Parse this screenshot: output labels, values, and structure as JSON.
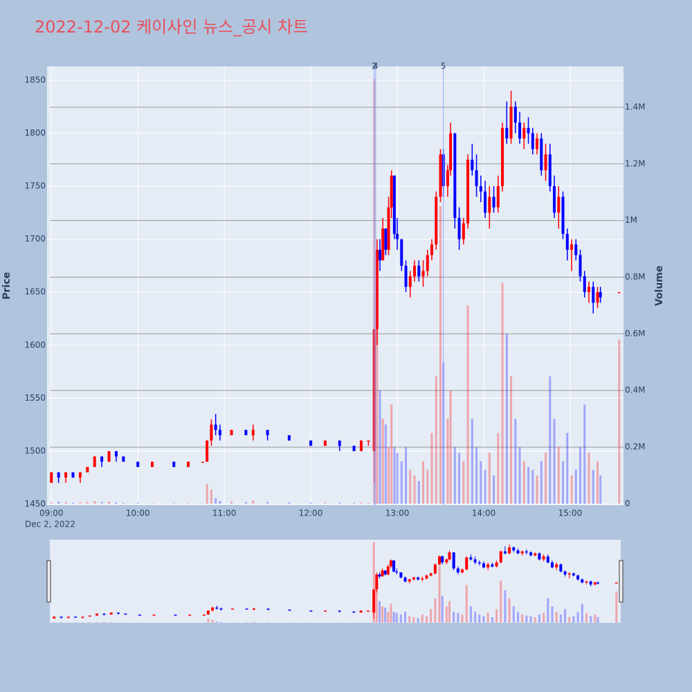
{
  "chart_data": {
    "type": "candlestick",
    "title": "2022-12-02 케이사인 뉴스_공시 차트",
    "y_label": "Price",
    "y2_label": "Volume",
    "x_date_label": "Dec 2, 2022",
    "up_color": "#ff0000",
    "down_color": "#0000ff",
    "grid": true,
    "xlim": [
      "08:57",
      "15:37"
    ],
    "xticks": [
      "09:00",
      "10:00",
      "11:00",
      "12:00",
      "13:00",
      "14:00",
      "15:00"
    ],
    "ylim": [
      1449,
      1863
    ],
    "yticks": [
      1450,
      1500,
      1550,
      1600,
      1650,
      1700,
      1750,
      1800,
      1850
    ],
    "y2lim": [
      -5000,
      1544000
    ],
    "y2ticks": [
      0,
      {
        "value": 200000,
        "label": "0.2M"
      },
      {
        "value": 400000,
        "label": "0.4M"
      },
      {
        "value": 600000,
        "label": "0.6M"
      },
      {
        "value": 800000,
        "label": "0.8M"
      },
      {
        "value": 1000000,
        "label": "1M"
      },
      {
        "value": 1200000,
        "label": "1.2M"
      },
      {
        "value": 1400000,
        "label": "1.4M"
      }
    ],
    "annotations": [
      {
        "x": "12:44",
        "text": "2"
      },
      {
        "x": "12:45",
        "text": "4"
      },
      {
        "x": "13:32",
        "text": "5"
      }
    ],
    "x": [
      "09:00",
      "09:05",
      "09:10",
      "09:15",
      "09:20",
      "09:25",
      "09:30",
      "09:35",
      "09:40",
      "09:45",
      "09:50",
      "10:00",
      "10:10",
      "10:25",
      "10:35",
      "10:45",
      "10:48",
      "10:51",
      "10:54",
      "10:57",
      "11:05",
      "11:15",
      "11:20",
      "11:30",
      "11:45",
      "12:00",
      "12:10",
      "12:20",
      "12:30",
      "12:35",
      "12:40",
      "12:44",
      "12:46",
      "12:48",
      "12:50",
      "12:52",
      "12:54",
      "12:56",
      "12:58",
      "13:00",
      "13:03",
      "13:06",
      "13:09",
      "13:12",
      "13:15",
      "13:18",
      "13:21",
      "13:24",
      "13:27",
      "13:30",
      "13:32",
      "13:35",
      "13:37",
      "13:40",
      "13:43",
      "13:46",
      "13:49",
      "13:52",
      "13:55",
      "13:58",
      "14:01",
      "14:04",
      "14:07",
      "14:10",
      "14:13",
      "14:16",
      "14:19",
      "14:22",
      "14:25",
      "14:28",
      "14:31",
      "14:34",
      "14:37",
      "14:40",
      "14:43",
      "14:46",
      "14:49",
      "14:52",
      "14:55",
      "14:58",
      "15:01",
      "15:04",
      "15:07",
      "15:10",
      "15:13",
      "15:16",
      "15:19",
      "15:21",
      "15:34"
    ],
    "open": [
      1470,
      1480,
      1475,
      1480,
      1475,
      1480,
      1485,
      1495,
      1490,
      1500,
      1495,
      1490,
      1485,
      1490,
      1485,
      1490,
      1490,
      1510,
      1525,
      1520,
      1515,
      1520,
      1515,
      1520,
      1515,
      1510,
      1505,
      1510,
      1505,
      1500,
      1510,
      1500,
      1615,
      1690,
      1680,
      1710,
      1690,
      1730,
      1760,
      1705,
      1700,
      1675,
      1655,
      1665,
      1675,
      1665,
      1670,
      1685,
      1695,
      1740,
      1780,
      1750,
      1765,
      1800,
      1720,
      1700,
      1715,
      1775,
      1765,
      1750,
      1745,
      1725,
      1740,
      1730,
      1750,
      1805,
      1795,
      1825,
      1810,
      1795,
      1805,
      1800,
      1785,
      1795,
      1765,
      1780,
      1750,
      1725,
      1740,
      1705,
      1690,
      1695,
      1685,
      1665,
      1650,
      1655,
      1640,
      1650,
      1650
    ],
    "high": [
      1480,
      1480,
      1480,
      1480,
      1480,
      1485,
      1495,
      1495,
      1500,
      1500,
      1495,
      1490,
      1490,
      1490,
      1490,
      1490,
      1510,
      1530,
      1535,
      1525,
      1520,
      1520,
      1525,
      1520,
      1515,
      1510,
      1510,
      1510,
      1505,
      1510,
      1510,
      1615,
      1700,
      1700,
      1720,
      1710,
      1740,
      1765,
      1760,
      1720,
      1700,
      1680,
      1670,
      1680,
      1680,
      1680,
      1690,
      1700,
      1745,
      1785,
      1785,
      1770,
      1810,
      1800,
      1730,
      1720,
      1780,
      1790,
      1780,
      1760,
      1755,
      1750,
      1750,
      1760,
      1810,
      1830,
      1840,
      1830,
      1820,
      1810,
      1815,
      1805,
      1800,
      1800,
      1790,
      1790,
      1760,
      1750,
      1745,
      1710,
      1700,
      1700,
      1690,
      1670,
      1660,
      1660,
      1655,
      1655,
      1650
    ],
    "low": [
      1470,
      1470,
      1470,
      1475,
      1470,
      1480,
      1485,
      1485,
      1490,
      1490,
      1490,
      1485,
      1485,
      1485,
      1485,
      1490,
      1490,
      1505,
      1515,
      1510,
      1515,
      1515,
      1510,
      1510,
      1510,
      1505,
      1505,
      1500,
      1500,
      1500,
      1505,
      1470,
      1600,
      1670,
      1680,
      1685,
      1685,
      1720,
      1700,
      1690,
      1670,
      1650,
      1645,
      1660,
      1660,
      1655,
      1665,
      1680,
      1690,
      1735,
      1740,
      1740,
      1760,
      1710,
      1690,
      1695,
      1710,
      1760,
      1740,
      1735,
      1720,
      1710,
      1725,
      1725,
      1745,
      1790,
      1790,
      1800,
      1790,
      1785,
      1790,
      1780,
      1780,
      1760,
      1755,
      1745,
      1720,
      1710,
      1700,
      1680,
      1670,
      1680,
      1660,
      1645,
      1640,
      1630,
      1635,
      1640,
      1650
    ],
    "close": [
      1480,
      1475,
      1480,
      1475,
      1480,
      1485,
      1495,
      1490,
      1500,
      1495,
      1490,
      1485,
      1490,
      1485,
      1490,
      1490,
      1510,
      1525,
      1520,
      1515,
      1520,
      1515,
      1520,
      1515,
      1510,
      1505,
      1510,
      1505,
      1500,
      1510,
      1510,
      1615,
      1690,
      1680,
      1710,
      1690,
      1730,
      1760,
      1705,
      1700,
      1675,
      1655,
      1665,
      1675,
      1665,
      1670,
      1685,
      1695,
      1740,
      1780,
      1750,
      1765,
      1800,
      1720,
      1700,
      1715,
      1775,
      1765,
      1750,
      1745,
      1725,
      1740,
      1730,
      1750,
      1805,
      1795,
      1825,
      1810,
      1795,
      1805,
      1800,
      1785,
      1795,
      1765,
      1780,
      1750,
      1725,
      1740,
      1705,
      1690,
      1695,
      1685,
      1665,
      1650,
      1655,
      1640,
      1650,
      1645,
      1650
    ],
    "volume": [
      5000,
      8000,
      6000,
      4000,
      5000,
      6000,
      10000,
      6000,
      8000,
      5000,
      3000,
      3000,
      2000,
      2000,
      2000,
      1000,
      70000,
      50000,
      20000,
      10000,
      8000,
      6000,
      12000,
      6000,
      5000,
      4000,
      3000,
      4000,
      3000,
      4000,
      3000,
      1500000,
      800000,
      400000,
      300000,
      280000,
      200000,
      350000,
      200000,
      180000,
      150000,
      200000,
      120000,
      100000,
      80000,
      150000,
      120000,
      250000,
      450000,
      1050000,
      500000,
      300000,
      400000,
      200000,
      180000,
      150000,
      700000,
      300000,
      200000,
      150000,
      120000,
      180000,
      100000,
      250000,
      780000,
      600000,
      450000,
      300000,
      200000,
      150000,
      130000,
      120000,
      100000,
      150000,
      180000,
      450000,
      300000,
      200000,
      150000,
      250000,
      100000,
      120000,
      200000,
      350000,
      180000,
      120000,
      150000,
      100000,
      580000
    ]
  }
}
